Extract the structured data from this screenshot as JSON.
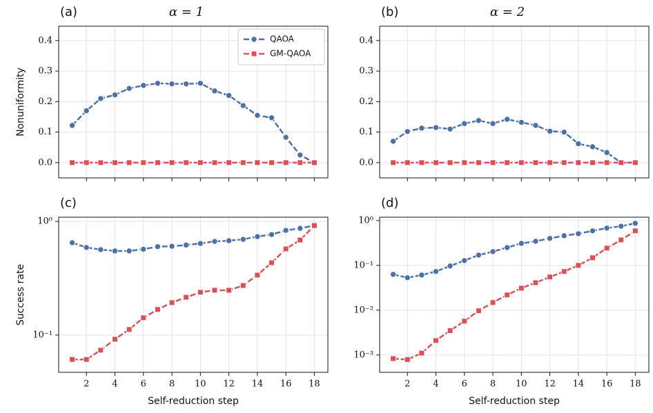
{
  "chart_data": [
    {
      "type": "line",
      "panel_label": "(a)",
      "title": "α = 1",
      "ylabel": "Nonuniformity",
      "x": [
        1,
        2,
        3,
        4,
        5,
        6,
        7,
        8,
        9,
        10,
        11,
        12,
        13,
        14,
        15,
        16,
        17,
        18
      ],
      "series": [
        {
          "name": "QAOA",
          "color": "#4c72a5",
          "marker": "circle",
          "values": [
            0.122,
            0.17,
            0.21,
            0.222,
            0.243,
            0.253,
            0.26,
            0.258,
            0.258,
            0.26,
            0.235,
            0.22,
            0.187,
            0.155,
            0.147,
            0.083,
            0.025,
            0.0
          ]
        },
        {
          "name": "GM-QAOA",
          "color": "#d95157",
          "marker": "square",
          "values": [
            0,
            0,
            0,
            0,
            0,
            0,
            0,
            0,
            0,
            0,
            0,
            0,
            0,
            0,
            0,
            0,
            0,
            0
          ]
        }
      ],
      "xlim": [
        0.05,
        18.95
      ],
      "xticks": [
        2,
        4,
        6,
        8,
        10,
        12,
        14,
        16,
        18
      ],
      "xticklabels": false,
      "ylim": [
        -0.05,
        0.447
      ],
      "yticks": [
        {
          "value": 0,
          "label": "0.0"
        },
        0.1,
        0.2,
        0.3,
        0.4
      ],
      "grid": true,
      "legend": "upper right"
    },
    {
      "type": "line",
      "panel_label": "(b)",
      "title": "α = 2",
      "x": [
        1,
        2,
        3,
        4,
        5,
        6,
        7,
        8,
        9,
        10,
        11,
        12,
        13,
        14,
        15,
        16,
        17,
        18
      ],
      "series": [
        {
          "color": "#4c72a5",
          "marker": "circle",
          "values": [
            0.07,
            0.102,
            0.113,
            0.115,
            0.11,
            0.128,
            0.138,
            0.128,
            0.142,
            0.132,
            0.122,
            0.103,
            0.1,
            0.062,
            0.052,
            0.033,
            0.0,
            0.0
          ]
        },
        {
          "color": "#d95157",
          "marker": "square",
          "values": [
            0,
            0,
            0,
            0,
            0,
            0,
            0,
            0,
            0,
            0,
            0,
            0,
            0,
            0,
            0,
            0,
            0,
            0
          ]
        }
      ],
      "xlim": [
        0.05,
        18.95
      ],
      "xticks": [
        2,
        4,
        6,
        8,
        10,
        12,
        14,
        16,
        18
      ],
      "xticklabels": false,
      "ylim": [
        -0.05,
        0.447
      ],
      "yticks": [
        {
          "value": 0,
          "label": "0.0"
        },
        0.1,
        0.2,
        0.3,
        0.4
      ],
      "grid": true
    },
    {
      "type": "line",
      "panel_label": "(c)",
      "ylabel": "Success rate",
      "xlabel": "Self-reduction step",
      "x": [
        1,
        2,
        3,
        4,
        5,
        6,
        7,
        8,
        9,
        10,
        11,
        12,
        13,
        14,
        15,
        16,
        17,
        18
      ],
      "series": [
        {
          "color": "#4c72a5",
          "marker": "circle",
          "values": [
            0.65,
            0.59,
            0.565,
            0.55,
            0.55,
            0.57,
            0.6,
            0.605,
            0.62,
            0.64,
            0.667,
            0.677,
            0.696,
            0.736,
            0.767,
            0.834,
            0.87,
            0.92
          ]
        },
        {
          "color": "#d95157",
          "marker": "square",
          "values": [
            0.061,
            0.061,
            0.0736,
            0.092,
            0.112,
            0.142,
            0.168,
            0.193,
            0.215,
            0.238,
            0.248,
            0.248,
            0.273,
            0.337,
            0.433,
            0.573,
            0.686,
            0.92
          ]
        }
      ],
      "xlim": [
        0.05,
        18.95
      ],
      "xticks": [
        2,
        4,
        6,
        8,
        10,
        12,
        14,
        16,
        18
      ],
      "yscale": "log",
      "ylim": [
        0.047,
        1.09
      ],
      "yticks": [
        {
          "value": 0.1,
          "label": "10⁻¹"
        },
        {
          "value": 1,
          "label": "10⁰"
        }
      ],
      "grid": true
    },
    {
      "type": "line",
      "panel_label": "(d)",
      "xlabel": "Self-reduction step",
      "x": [
        1,
        2,
        3,
        4,
        5,
        6,
        7,
        8,
        9,
        10,
        11,
        12,
        13,
        14,
        15,
        16,
        17,
        18
      ],
      "series": [
        {
          "color": "#4c72a5",
          "marker": "circle",
          "values": [
            0.063,
            0.053,
            0.061,
            0.073,
            0.097,
            0.128,
            0.17,
            0.203,
            0.25,
            0.31,
            0.345,
            0.4,
            0.46,
            0.51,
            0.59,
            0.68,
            0.75,
            0.87
          ]
        },
        {
          "color": "#d95157",
          "marker": "square",
          "values": [
            0.00083,
            0.00079,
            0.0011,
            0.0021,
            0.0035,
            0.0057,
            0.0097,
            0.0148,
            0.0219,
            0.031,
            0.041,
            0.055,
            0.073,
            0.1,
            0.148,
            0.243,
            0.37,
            0.59
          ]
        }
      ],
      "xlim": [
        0.05,
        18.95
      ],
      "xticks": [
        2,
        4,
        6,
        8,
        10,
        12,
        14,
        16,
        18
      ],
      "yscale": "log",
      "ylim": [
        0.00041,
        1.19
      ],
      "yticks": [
        {
          "value": 0.001,
          "label": "10⁻³"
        },
        {
          "value": 0.01,
          "label": "10⁻²"
        },
        {
          "value": 0.1,
          "label": "10⁻¹"
        },
        {
          "value": 1,
          "label": "10⁰"
        }
      ],
      "grid": true
    }
  ]
}
